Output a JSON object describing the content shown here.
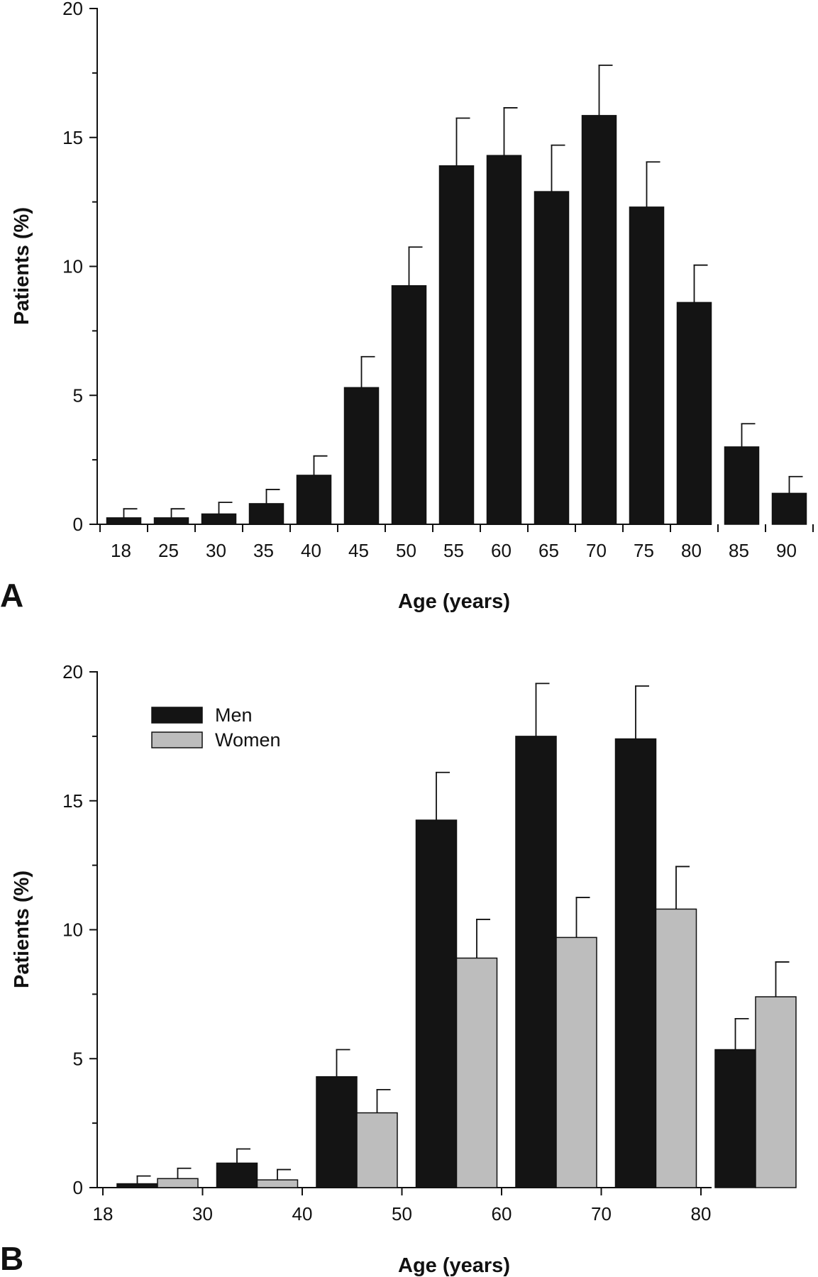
{
  "chart_data": [
    {
      "panel": "A",
      "type": "bar",
      "xlabel": "Age (years)",
      "ylabel": "Patients (%)",
      "ylim": [
        0,
        20
      ],
      "yticks": [
        "0",
        "5",
        "10",
        "15",
        "20"
      ],
      "categories": [
        "18",
        "25",
        "30",
        "35",
        "40",
        "45",
        "50",
        "55",
        "60",
        "65",
        "70",
        "75",
        "80",
        "85",
        "90"
      ],
      "series": [
        {
          "color": "#141414",
          "values": [
            0.25,
            0.25,
            0.4,
            0.8,
            1.9,
            5.3,
            9.25,
            13.9,
            14.3,
            12.9,
            15.85,
            12.3,
            8.6,
            3.0,
            1.2
          ],
          "error": [
            0.35,
            0.35,
            0.45,
            0.55,
            0.75,
            1.2,
            1.5,
            1.85,
            1.85,
            1.8,
            1.95,
            1.75,
            1.45,
            0.9,
            0.65
          ]
        }
      ],
      "grid": false
    },
    {
      "panel": "B",
      "type": "bar",
      "xlabel": "Age (years)",
      "ylabel": "Patients (%)",
      "ylim": [
        0,
        20
      ],
      "yticks": [
        "0",
        "5",
        "10",
        "15",
        "20"
      ],
      "categories": [
        "18",
        "30",
        "40",
        "50",
        "60",
        "70",
        "80"
      ],
      "series": [
        {
          "name": "Men",
          "color": "#141414",
          "values": [
            0.15,
            0.95,
            4.3,
            14.25,
            17.5,
            17.4,
            5.35
          ],
          "error": [
            0.3,
            0.55,
            1.05,
            1.85,
            2.05,
            2.05,
            1.2
          ]
        },
        {
          "name": "Women",
          "color": "#bdbdbd",
          "values": [
            0.35,
            0.3,
            2.9,
            8.9,
            9.7,
            10.8,
            7.4
          ],
          "error": [
            0.4,
            0.4,
            0.9,
            1.5,
            1.55,
            1.65,
            1.35
          ]
        }
      ],
      "legend": "top-left",
      "grid": false
    }
  ]
}
